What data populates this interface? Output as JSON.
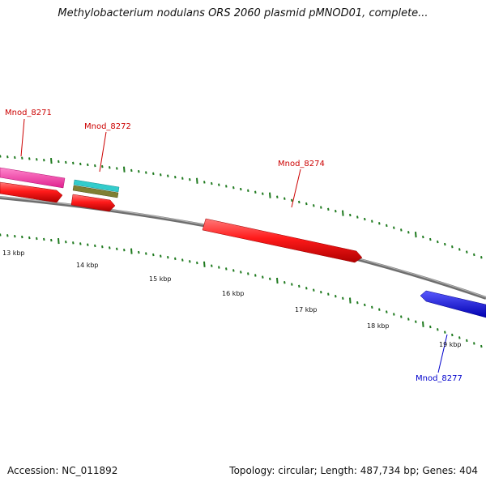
{
  "title": "Methylobacterium nodulans ORS 2060 plasmid pMNOD01, complete...",
  "accession_text": "Accession: NC_011892",
  "summary_text": "Topology: circular; Length: 487,734 bp; Genes: 404",
  "scale_labels": [
    "13 kbp",
    "14 kbp",
    "15 kbp",
    "16 kbp",
    "17 kbp",
    "18 kbp",
    "19 kbp"
  ],
  "genes": [
    {
      "id": "Mnod_8271",
      "label_color": "#cc0000"
    },
    {
      "id": "Mnod_8272",
      "label_color": "#cc0000"
    },
    {
      "id": "Mnod_8274",
      "label_color": "#cc0000"
    },
    {
      "id": "Mnod_8277",
      "label_color": "#0000cc"
    }
  ],
  "colors": {
    "backbone": "#808080",
    "ticks": "#1f7a1f",
    "forward_cds": "#ff0000",
    "pink_feature": "#ff33aa",
    "cyan_feature": "#33cccc",
    "olive_feature": "#808033",
    "reverse_cds": "#0000ee"
  }
}
